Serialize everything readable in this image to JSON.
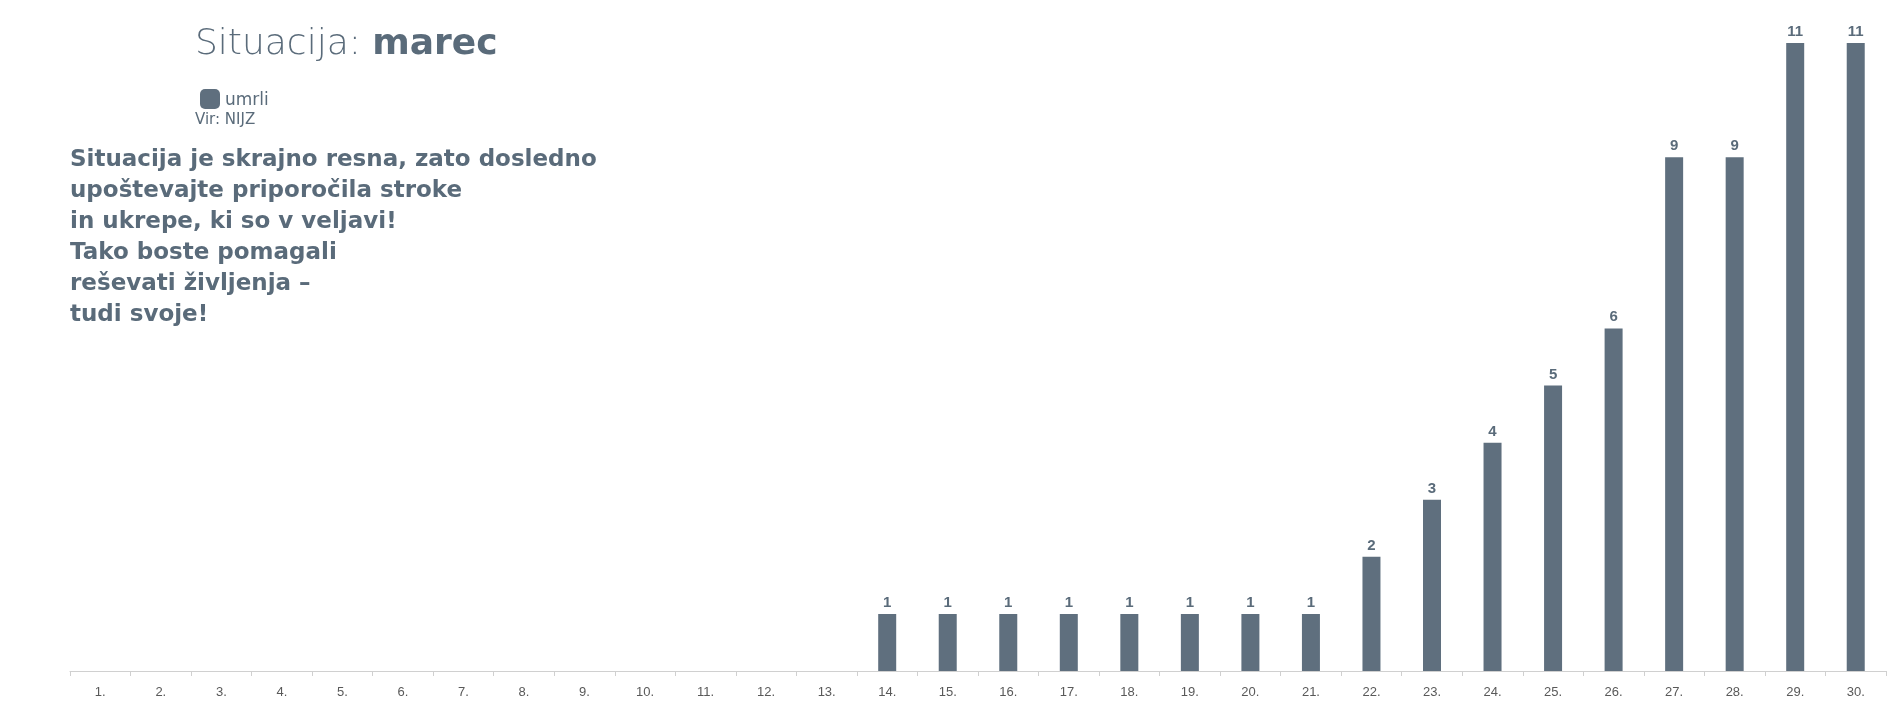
{
  "chart_data": {
    "type": "bar",
    "title": "Situacija: marec",
    "categories": [
      "1.",
      "2.",
      "3.",
      "4.",
      "5.",
      "6.",
      "7.",
      "8.",
      "9.",
      "10.",
      "11.",
      "12.",
      "13.",
      "14.",
      "15.",
      "16.",
      "17.",
      "18.",
      "19.",
      "20.",
      "21.",
      "22.",
      "23.",
      "24.",
      "25.",
      "26.",
      "27.",
      "28.",
      "29.",
      "30."
    ],
    "series": [
      {
        "name": "umrli",
        "color": "#5f6f7e",
        "values": [
          null,
          null,
          null,
          null,
          null,
          null,
          null,
          null,
          null,
          null,
          null,
          null,
          null,
          1,
          1,
          1,
          1,
          1,
          1,
          1,
          1,
          2,
          3,
          4,
          5,
          6,
          9,
          9,
          11,
          11
        ],
        "value_labels": [
          null,
          null,
          null,
          null,
          null,
          null,
          null,
          null,
          null,
          null,
          null,
          null,
          null,
          "1",
          "1",
          "1",
          "1",
          "1",
          "1",
          "1",
          "1",
          "2",
          "3",
          "4",
          "5",
          "6",
          "9",
          "9",
          "11",
          "11"
        ]
      }
    ],
    "annotations": [
      "Vir: NIJZ",
      "Situacija je skrajno resna, zato dosledno\nupoštevajte priporočila stroke\nin ukrepe, ki so v veljavi!\nTako boste pomagali\nreševati življenja –\ntudi svoje!"
    ],
    "legend": "top left",
    "grid": false
  }
}
